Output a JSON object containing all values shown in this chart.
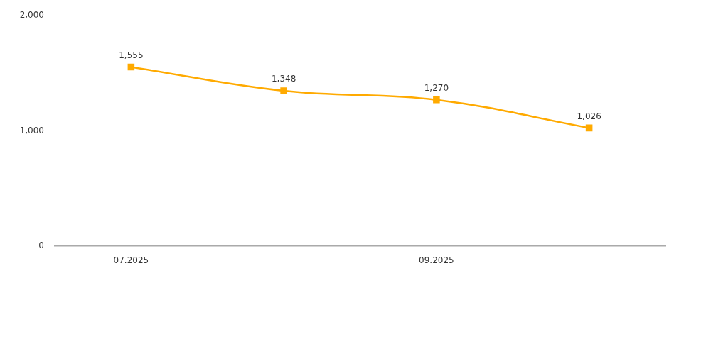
{
  "chart_data": {
    "type": "line",
    "categories": [
      "07.2025",
      null,
      "09.2025",
      null
    ],
    "series": [
      {
        "color": "#ffaa00",
        "values": [
          1555,
          1348,
          1270,
          1026
        ],
        "value_labels": [
          "1,555",
          "1,348",
          "1,270",
          "1,026"
        ]
      }
    ],
    "ylim": [
      0,
      2000
    ],
    "yticks": [
      {
        "value": 0,
        "label": "0"
      },
      {
        "value": 1000,
        "label": "1,000"
      },
      {
        "value": 2000,
        "label": "2,000"
      }
    ],
    "marker": "square",
    "grid": false,
    "legend": false
  }
}
